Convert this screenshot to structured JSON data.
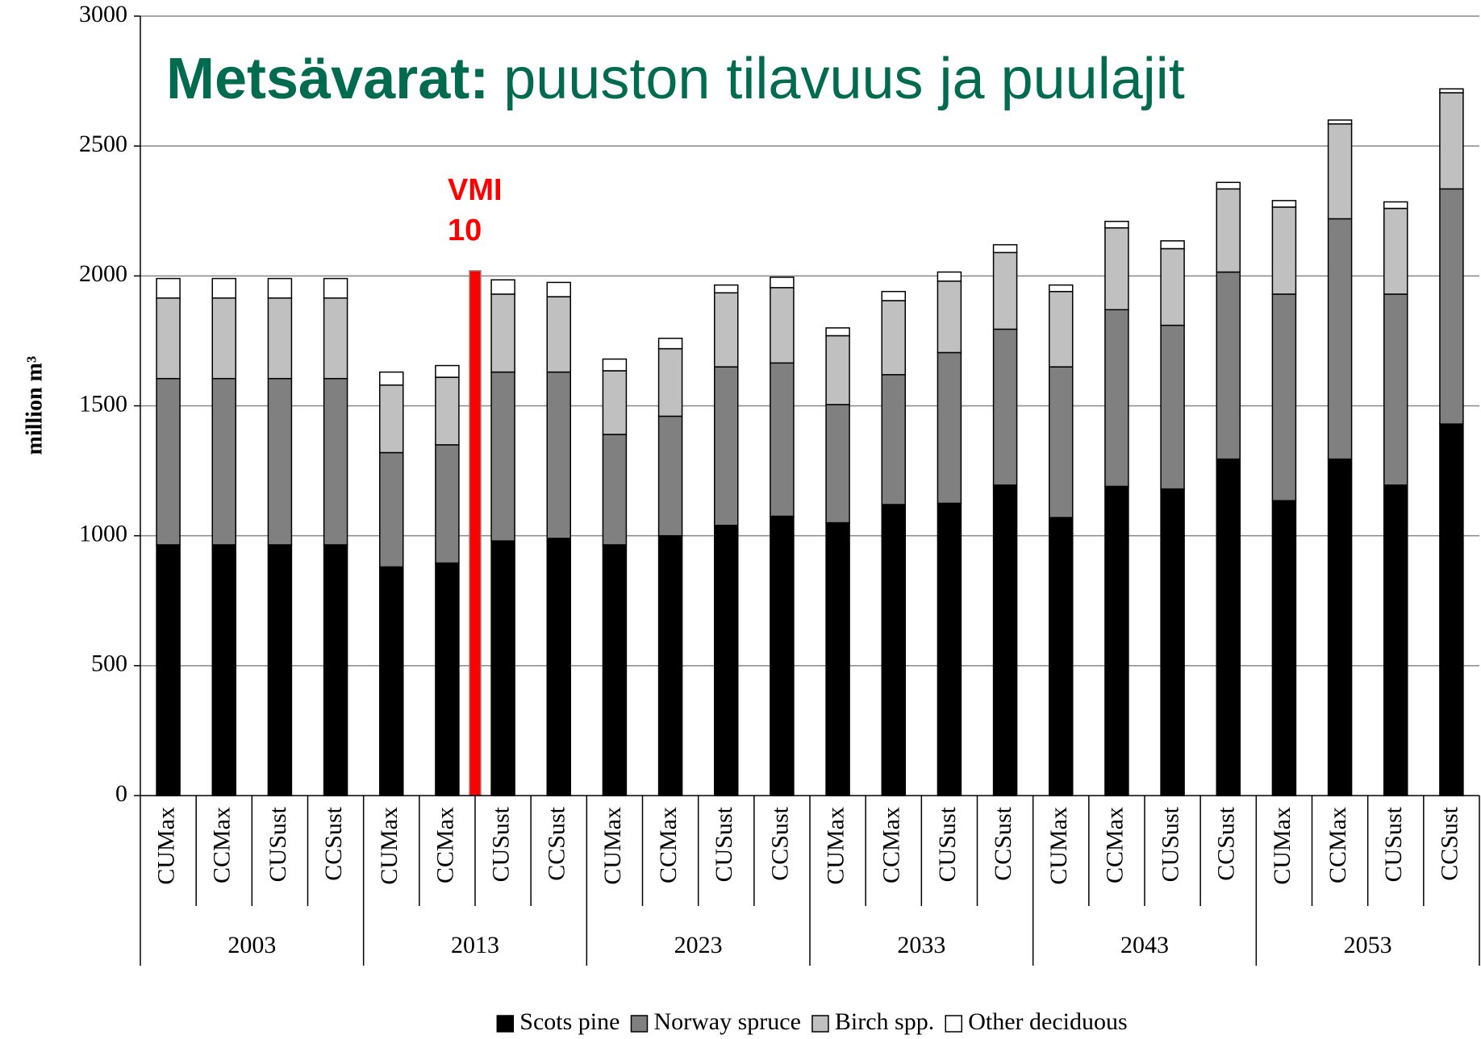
{
  "chart_data": {
    "type": "stacked_bar",
    "title_bold": "Metsävarat:",
    "title_rest": "puuston tilavuus ja puulajit",
    "y_label": "million m³",
    "categories": [
      "CUMax",
      "CCMax",
      "CUSust",
      "CCSust",
      "CUMax",
      "CCMax",
      "CUSust",
      "CCSust",
      "CUMax",
      "CCMax",
      "CUSust",
      "CCSust",
      "CUMax",
      "CCMax",
      "CUSust",
      "CCSust",
      "CUMax",
      "CCMax",
      "CUSust",
      "CCSust",
      "CUMax",
      "CCMax",
      "CUSust",
      "CCSust"
    ],
    "groups": [
      "2003",
      "2013",
      "2023",
      "2033",
      "2043",
      "2053"
    ],
    "series": [
      {
        "name": "Scots pine",
        "color": "#000000",
        "values": [
          965,
          965,
          965,
          965,
          880,
          895,
          980,
          990,
          965,
          1000,
          1040,
          1075,
          1050,
          1120,
          1125,
          1195,
          1070,
          1190,
          1180,
          1295,
          1135,
          1295,
          1195,
          1430
        ]
      },
      {
        "name": "Norway spruce",
        "color": "#808080",
        "values": [
          640,
          640,
          640,
          640,
          440,
          455,
          650,
          640,
          425,
          460,
          610,
          590,
          455,
          500,
          580,
          600,
          580,
          680,
          630,
          720,
          795,
          925,
          735,
          905
        ]
      },
      {
        "name": "Birch spp.",
        "color": "#c0c0c0",
        "values": [
          310,
          310,
          310,
          310,
          260,
          260,
          300,
          290,
          245,
          260,
          285,
          290,
          265,
          285,
          275,
          295,
          290,
          315,
          295,
          320,
          335,
          365,
          330,
          370
        ]
      },
      {
        "name": "Other deciduous",
        "color": "#ffffff",
        "values": [
          75,
          75,
          75,
          75,
          50,
          45,
          55,
          55,
          45,
          40,
          30,
          40,
          30,
          35,
          35,
          30,
          25,
          25,
          30,
          25,
          25,
          15,
          25,
          15
        ]
      }
    ],
    "reference": {
      "label_lines": [
        "VMI",
        "10"
      ],
      "value": 2020,
      "color": "#ff0000"
    },
    "ylim": [
      0,
      3000
    ],
    "yticks": [
      0,
      500,
      1000,
      1500,
      2000,
      2500,
      3000
    ],
    "grid": true
  }
}
